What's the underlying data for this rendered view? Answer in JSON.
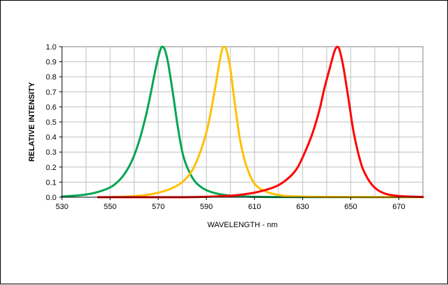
{
  "chart_data": {
    "type": "line",
    "title": "",
    "xlabel": "WAVELENGTH - nm",
    "ylabel": "RELATIVE INTENSITY",
    "xlim": [
      530,
      680
    ],
    "ylim": [
      0,
      1.0
    ],
    "x_ticks": [
      530,
      550,
      570,
      590,
      610,
      630,
      650,
      670
    ],
    "x_tick_labels": [
      "530",
      "550",
      "570",
      "590",
      "610",
      "630",
      "650",
      "670"
    ],
    "y_ticks": [
      0,
      0.1,
      0.2,
      0.3,
      0.4,
      0.5,
      0.6,
      0.7,
      0.8,
      0.9,
      1.0
    ],
    "y_tick_labels": [
      "0.0",
      "0.1",
      "0.2",
      "0.3",
      "0.4",
      "0.5",
      "0.6",
      "0.7",
      "0.8",
      "0.9",
      "1.0"
    ],
    "grid": true,
    "legend": "none",
    "series": [
      {
        "color": "#00a651",
        "points": [
          [
            530,
            0.005
          ],
          [
            535,
            0.01
          ],
          [
            540,
            0.018
          ],
          [
            545,
            0.035
          ],
          [
            550,
            0.065
          ],
          [
            553,
            0.1
          ],
          [
            556,
            0.155
          ],
          [
            559,
            0.24
          ],
          [
            562,
            0.37
          ],
          [
            565,
            0.55
          ],
          [
            567,
            0.7
          ],
          [
            569,
            0.86
          ],
          [
            570.5,
            0.96
          ],
          [
            571.5,
            1.0
          ],
          [
            572.5,
            0.99
          ],
          [
            574,
            0.9
          ],
          [
            576,
            0.7
          ],
          [
            578,
            0.48
          ],
          [
            580,
            0.3
          ],
          [
            582,
            0.2
          ],
          [
            585,
            0.11
          ],
          [
            588,
            0.065
          ],
          [
            591,
            0.04
          ],
          [
            595,
            0.022
          ],
          [
            600,
            0.01
          ],
          [
            605,
            0.005
          ],
          [
            610,
            0.003
          ],
          [
            620,
            0.001
          ],
          [
            640,
            0.0005
          ],
          [
            680,
            0.0
          ]
        ]
      },
      {
        "color": "#ffc000",
        "points": [
          [
            545,
            0.0
          ],
          [
            555,
            0.003
          ],
          [
            560,
            0.007
          ],
          [
            565,
            0.015
          ],
          [
            570,
            0.03
          ],
          [
            575,
            0.055
          ],
          [
            580,
            0.1
          ],
          [
            584,
            0.175
          ],
          [
            587,
            0.28
          ],
          [
            590,
            0.43
          ],
          [
            592,
            0.58
          ],
          [
            594,
            0.76
          ],
          [
            595.5,
            0.9
          ],
          [
            596.5,
            0.98
          ],
          [
            597.5,
            1.0
          ],
          [
            598.5,
            0.97
          ],
          [
            600,
            0.85
          ],
          [
            602,
            0.6
          ],
          [
            604,
            0.38
          ],
          [
            606,
            0.24
          ],
          [
            608,
            0.15
          ],
          [
            610,
            0.09
          ],
          [
            613,
            0.05
          ],
          [
            617,
            0.025
          ],
          [
            622,
            0.01
          ],
          [
            630,
            0.004
          ],
          [
            640,
            0.002
          ],
          [
            660,
            0.001
          ],
          [
            680,
            0.0
          ]
        ]
      },
      {
        "color": "#ff0000",
        "points": [
          [
            545,
            0.0
          ],
          [
            580,
            0.0
          ],
          [
            590,
            0.003
          ],
          [
            595,
            0.006
          ],
          [
            600,
            0.01
          ],
          [
            605,
            0.018
          ],
          [
            610,
            0.03
          ],
          [
            615,
            0.05
          ],
          [
            620,
            0.08
          ],
          [
            625,
            0.14
          ],
          [
            628,
            0.2
          ],
          [
            631,
            0.3
          ],
          [
            634,
            0.42
          ],
          [
            637,
            0.58
          ],
          [
            639,
            0.72
          ],
          [
            641,
            0.84
          ],
          [
            642.5,
            0.93
          ],
          [
            643.5,
            0.98
          ],
          [
            644.5,
            1.0
          ],
          [
            645.5,
            0.97
          ],
          [
            647,
            0.86
          ],
          [
            649,
            0.66
          ],
          [
            651,
            0.45
          ],
          [
            653,
            0.3
          ],
          [
            655,
            0.19
          ],
          [
            658,
            0.1
          ],
          [
            661,
            0.05
          ],
          [
            665,
            0.02
          ],
          [
            670,
            0.008
          ],
          [
            675,
            0.004
          ],
          [
            680,
            0.002
          ]
        ]
      }
    ]
  }
}
